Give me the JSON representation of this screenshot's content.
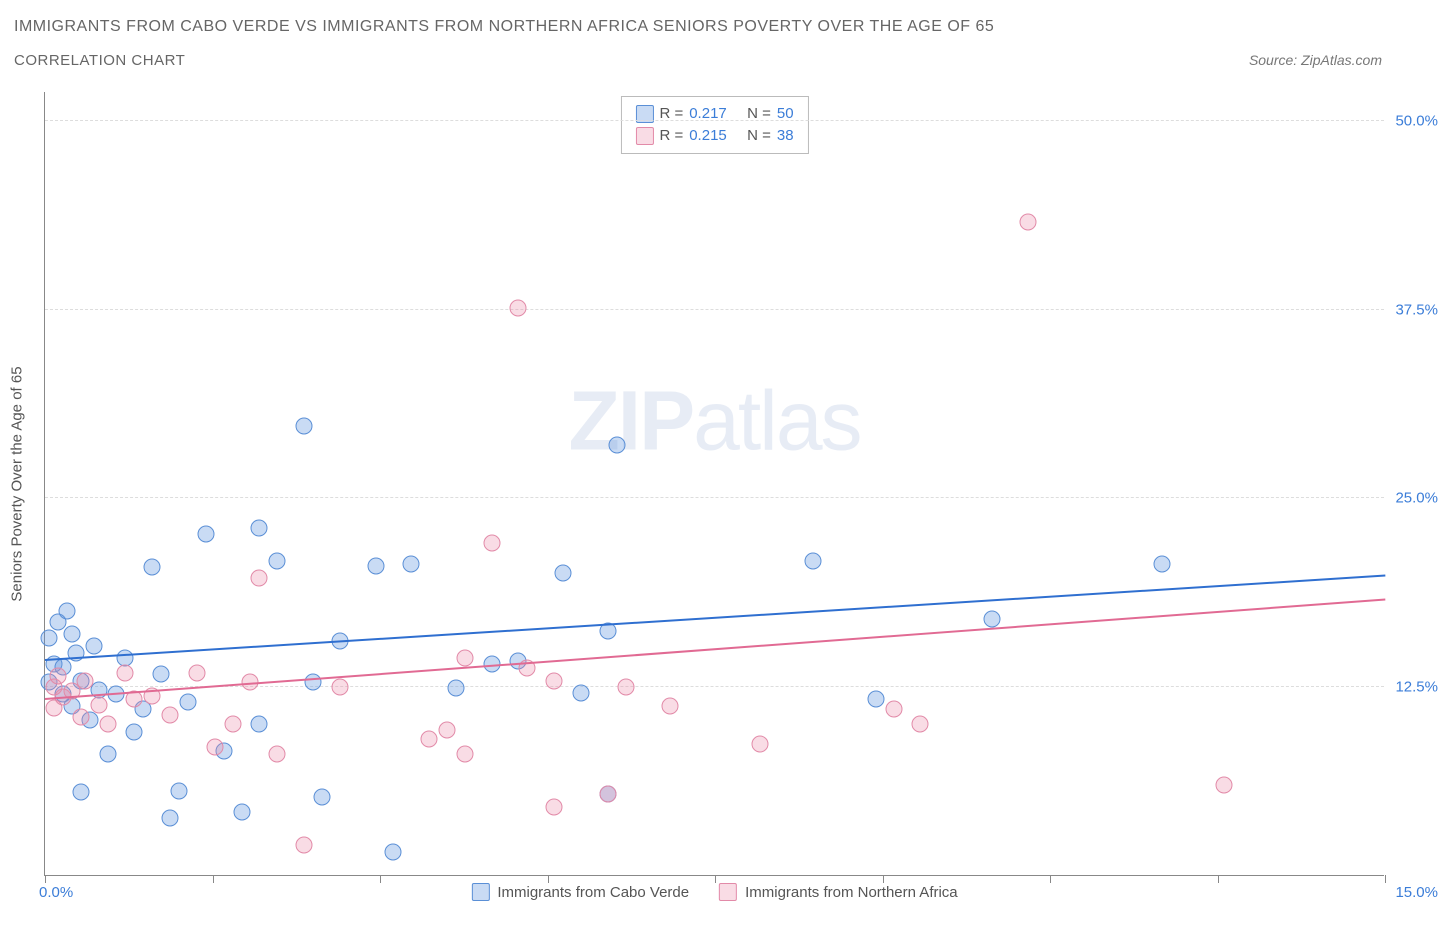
{
  "title_main": "IMMIGRANTS FROM CABO VERDE VS IMMIGRANTS FROM NORTHERN AFRICA SENIORS POVERTY OVER THE AGE OF 65",
  "title_sub": "CORRELATION CHART",
  "source_text": "Source: ZipAtlas.com",
  "yaxis_label": "Seniors Poverty Over the Age of 65",
  "watermark_a": "ZIP",
  "watermark_b": "atlas",
  "xaxis": {
    "min": 0,
    "max": 15,
    "left_label": "0.0%",
    "right_label": "15.0%",
    "tick_positions_pct": [
      0,
      12.5,
      25,
      37.5,
      50,
      62.5,
      75,
      87.5,
      100
    ]
  },
  "yaxis": {
    "min": 0,
    "max": 52,
    "ticks": [
      {
        "value": 12.5,
        "label": "12.5%"
      },
      {
        "value": 25,
        "label": "25.0%"
      },
      {
        "value": 37.5,
        "label": "37.5%"
      },
      {
        "value": 50,
        "label": "50.0%"
      }
    ]
  },
  "series": [
    {
      "key": "cabo_verde",
      "name": "Immigrants from Cabo Verde",
      "color_fill": "rgba(99,153,224,0.35)",
      "color_stroke": "#5a8fd6",
      "trend_color": "#2f6fd0",
      "R": "0.217",
      "N": "50",
      "trend": {
        "x1": 0,
        "y1": 14.2,
        "x2": 15,
        "y2": 19.8
      },
      "points": [
        [
          0.05,
          15.7
        ],
        [
          0.05,
          12.8
        ],
        [
          0.1,
          14.0
        ],
        [
          0.15,
          16.8
        ],
        [
          0.2,
          12.0
        ],
        [
          0.2,
          13.8
        ],
        [
          0.25,
          17.5
        ],
        [
          0.3,
          16.0
        ],
        [
          0.35,
          14.7
        ],
        [
          0.4,
          12.9
        ],
        [
          0.4,
          5.5
        ],
        [
          0.55,
          15.2
        ],
        [
          0.6,
          12.3
        ],
        [
          0.7,
          8.0
        ],
        [
          0.9,
          14.4
        ],
        [
          1.0,
          9.5
        ],
        [
          1.2,
          20.4
        ],
        [
          1.3,
          13.3
        ],
        [
          1.4,
          3.8
        ],
        [
          1.5,
          5.6
        ],
        [
          1.6,
          11.5
        ],
        [
          1.8,
          22.6
        ],
        [
          2.0,
          8.2
        ],
        [
          2.2,
          4.2
        ],
        [
          2.4,
          23.0
        ],
        [
          2.4,
          10.0
        ],
        [
          2.6,
          20.8
        ],
        [
          2.9,
          29.8
        ],
        [
          3.0,
          12.8
        ],
        [
          3.1,
          5.2
        ],
        [
          3.3,
          15.5
        ],
        [
          3.7,
          20.5
        ],
        [
          3.9,
          1.5
        ],
        [
          4.1,
          20.6
        ],
        [
          4.6,
          12.4
        ],
        [
          5.0,
          14.0
        ],
        [
          5.3,
          14.2
        ],
        [
          5.8,
          20.0
        ],
        [
          6.0,
          12.1
        ],
        [
          6.3,
          5.4
        ],
        [
          6.3,
          16.2
        ],
        [
          6.4,
          28.5
        ],
        [
          8.6,
          20.8
        ],
        [
          9.3,
          11.7
        ],
        [
          10.6,
          17.0
        ],
        [
          12.5,
          20.6
        ],
        [
          0.3,
          11.2
        ],
        [
          0.5,
          10.3
        ],
        [
          0.8,
          12.0
        ],
        [
          1.1,
          11.0
        ]
      ]
    },
    {
      "key": "northern_africa",
      "name": "Immigrants from Northern Africa",
      "color_fill": "rgba(235,140,170,0.30)",
      "color_stroke": "#e28aa8",
      "trend_color": "#e16a93",
      "R": "0.215",
      "N": "38",
      "trend": {
        "x1": 0,
        "y1": 11.6,
        "x2": 15,
        "y2": 18.2
      },
      "points": [
        [
          0.1,
          12.5
        ],
        [
          0.1,
          11.1
        ],
        [
          0.15,
          13.2
        ],
        [
          0.2,
          11.8
        ],
        [
          0.3,
          12.2
        ],
        [
          0.4,
          10.5
        ],
        [
          0.45,
          12.9
        ],
        [
          0.6,
          11.3
        ],
        [
          0.7,
          10.0
        ],
        [
          0.9,
          13.4
        ],
        [
          1.0,
          11.7
        ],
        [
          1.2,
          11.9
        ],
        [
          1.4,
          10.6
        ],
        [
          1.7,
          13.4
        ],
        [
          1.9,
          8.5
        ],
        [
          2.1,
          10.0
        ],
        [
          2.3,
          12.8
        ],
        [
          2.4,
          19.7
        ],
        [
          2.6,
          8.0
        ],
        [
          2.9,
          2.0
        ],
        [
          3.3,
          12.5
        ],
        [
          4.3,
          9.0
        ],
        [
          4.5,
          9.6
        ],
        [
          4.7,
          8.0
        ],
        [
          4.7,
          14.4
        ],
        [
          5.0,
          22.0
        ],
        [
          5.3,
          37.6
        ],
        [
          5.4,
          13.7
        ],
        [
          5.7,
          12.9
        ],
        [
          5.7,
          4.5
        ],
        [
          6.3,
          5.4
        ],
        [
          6.5,
          12.5
        ],
        [
          7.0,
          11.2
        ],
        [
          8.0,
          8.7
        ],
        [
          9.5,
          11.0
        ],
        [
          9.8,
          10.0
        ],
        [
          11.0,
          43.3
        ],
        [
          13.2,
          6.0
        ]
      ]
    }
  ],
  "legend_top": {
    "r_label": "R =",
    "n_label": "N ="
  },
  "colors": {
    "title": "#666666",
    "axis_text": "#555555",
    "value_text": "#3b7dd8",
    "grid": "#dddddd",
    "border": "#888888",
    "bg": "#ffffff"
  }
}
